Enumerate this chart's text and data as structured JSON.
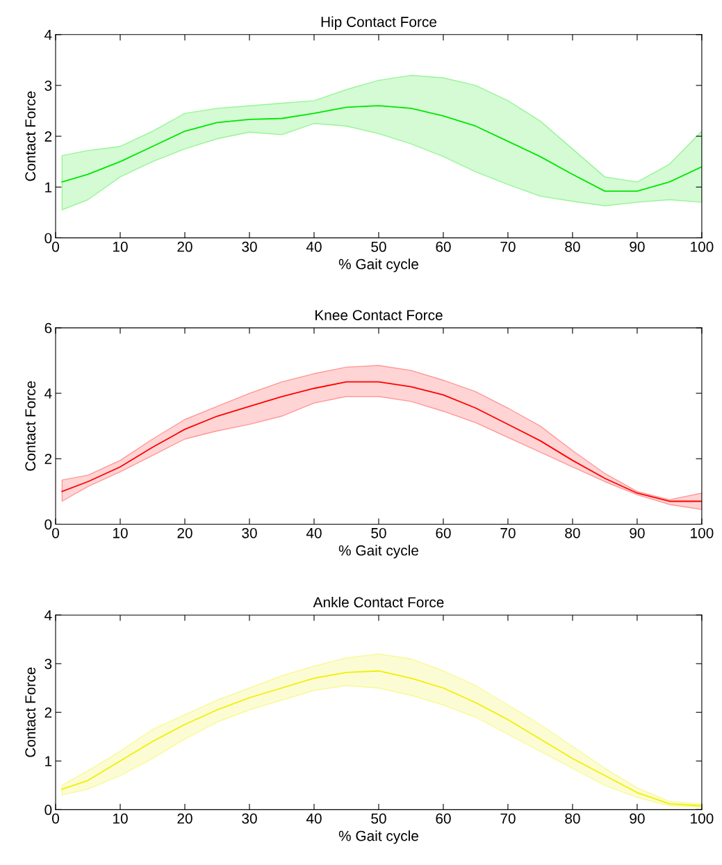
{
  "chart_data": [
    {
      "type": "line",
      "title": "Hip Contact Force",
      "xlabel": "% Gait cycle",
      "ylabel": "Contact Force",
      "xlim": [
        0,
        100
      ],
      "xticks": [
        0,
        10,
        20,
        30,
        40,
        50,
        60,
        70,
        80,
        90,
        100
      ],
      "ylim": [
        0,
        4
      ],
      "yticks": [
        0,
        1,
        2,
        3,
        4
      ],
      "grid": false,
      "x": [
        1,
        5,
        10,
        15,
        20,
        25,
        30,
        35,
        40,
        45,
        50,
        55,
        60,
        65,
        70,
        75,
        80,
        85,
        90,
        95,
        100
      ],
      "series": [
        {
          "color": "#00e600",
          "values": [
            1.1,
            1.25,
            1.5,
            1.8,
            2.1,
            2.27,
            2.33,
            2.35,
            2.45,
            2.57,
            2.6,
            2.55,
            2.4,
            2.2,
            1.9,
            1.6,
            1.25,
            0.92,
            0.92,
            1.1,
            1.4
          ],
          "lower": [
            0.55,
            0.75,
            1.2,
            1.5,
            1.75,
            1.95,
            2.08,
            2.03,
            2.25,
            2.2,
            2.05,
            1.85,
            1.6,
            1.3,
            1.05,
            0.82,
            0.72,
            0.63,
            0.7,
            0.75,
            0.7
          ],
          "upper": [
            1.62,
            1.72,
            1.8,
            2.1,
            2.45,
            2.55,
            2.6,
            2.65,
            2.7,
            2.92,
            3.1,
            3.2,
            3.15,
            3.0,
            2.7,
            2.3,
            1.75,
            1.2,
            1.1,
            1.45,
            2.1
          ]
        }
      ]
    },
    {
      "type": "line",
      "title": "Knee Contact Force",
      "xlabel": "% Gait cycle",
      "ylabel": "Contact Force",
      "xlim": [
        0,
        100
      ],
      "xticks": [
        0,
        10,
        20,
        30,
        40,
        50,
        60,
        70,
        80,
        90,
        100
      ],
      "ylim": [
        0,
        6
      ],
      "yticks": [
        0,
        2,
        4,
        6
      ],
      "grid": false,
      "x": [
        1,
        5,
        10,
        15,
        20,
        25,
        30,
        35,
        40,
        45,
        50,
        55,
        60,
        65,
        70,
        75,
        80,
        85,
        90,
        95,
        100
      ],
      "series": [
        {
          "color": "#ff0000",
          "values": [
            1.0,
            1.3,
            1.75,
            2.35,
            2.9,
            3.3,
            3.6,
            3.9,
            4.15,
            4.35,
            4.35,
            4.2,
            3.95,
            3.55,
            3.05,
            2.55,
            1.95,
            1.4,
            0.95,
            0.7,
            0.7
          ],
          "lower": [
            0.7,
            1.15,
            1.6,
            2.1,
            2.6,
            2.85,
            3.05,
            3.3,
            3.7,
            3.9,
            3.9,
            3.75,
            3.45,
            3.1,
            2.65,
            2.2,
            1.75,
            1.3,
            0.9,
            0.6,
            0.45
          ],
          "upper": [
            1.35,
            1.5,
            1.95,
            2.6,
            3.2,
            3.6,
            4.0,
            4.35,
            4.6,
            4.8,
            4.85,
            4.7,
            4.4,
            4.05,
            3.55,
            3.0,
            2.25,
            1.55,
            1.0,
            0.75,
            0.95
          ]
        }
      ]
    },
    {
      "type": "line",
      "title": "Ankle Contact Force",
      "xlabel": "% Gait cycle",
      "ylabel": "Contact Force",
      "xlim": [
        0,
        100
      ],
      "xticks": [
        0,
        10,
        20,
        30,
        40,
        50,
        60,
        70,
        80,
        90,
        100
      ],
      "ylim": [
        0,
        4
      ],
      "yticks": [
        0,
        1,
        2,
        3,
        4
      ],
      "grid": false,
      "x": [
        1,
        5,
        10,
        15,
        20,
        25,
        30,
        35,
        40,
        45,
        50,
        55,
        60,
        65,
        70,
        75,
        80,
        85,
        90,
        95,
        100
      ],
      "series": [
        {
          "color": "#f0f000",
          "values": [
            0.42,
            0.6,
            1.0,
            1.4,
            1.75,
            2.05,
            2.3,
            2.5,
            2.7,
            2.82,
            2.85,
            2.7,
            2.5,
            2.2,
            1.85,
            1.45,
            1.05,
            0.7,
            0.35,
            0.12,
            0.08
          ],
          "lower": [
            0.3,
            0.42,
            0.7,
            1.05,
            1.45,
            1.8,
            2.05,
            2.25,
            2.45,
            2.55,
            2.5,
            2.35,
            2.15,
            1.9,
            1.55,
            1.2,
            0.85,
            0.5,
            0.25,
            0.08,
            0.05
          ],
          "upper": [
            0.5,
            0.8,
            1.2,
            1.65,
            1.95,
            2.25,
            2.5,
            2.75,
            2.95,
            3.12,
            3.2,
            3.1,
            2.85,
            2.55,
            2.15,
            1.75,
            1.3,
            0.85,
            0.45,
            0.17,
            0.12
          ]
        }
      ]
    }
  ]
}
